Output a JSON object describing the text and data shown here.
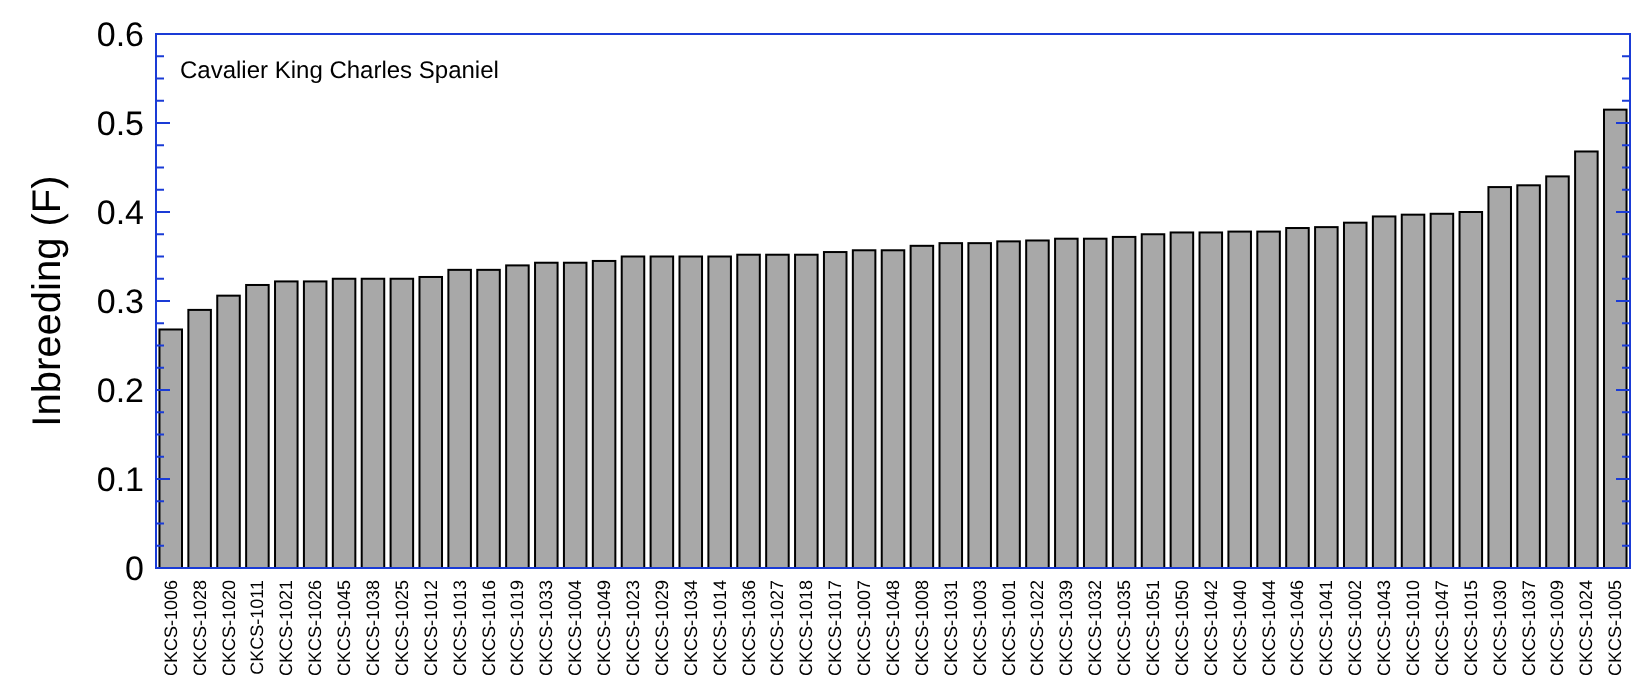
{
  "chart_data": {
    "type": "bar",
    "title": "Cavalier King Charles Spaniel",
    "ylabel": "Inbreeding (F)",
    "categories": [
      "CKCS-1006",
      "CKCS-1028",
      "CKCS-1020",
      "CKCS-1011",
      "CKCS-1021",
      "CKCS-1026",
      "CKCS-1045",
      "CKCS-1038",
      "CKCS-1025",
      "CKCS-1012",
      "CKCS-1013",
      "CKCS-1016",
      "CKCS-1019",
      "CKCS-1033",
      "CKCS-1004",
      "CKCS-1049",
      "CKCS-1023",
      "CKCS-1029",
      "CKCS-1034",
      "CKCS-1014",
      "CKCS-1036",
      "CKCS-1027",
      "CKCS-1018",
      "CKCS-1017",
      "CKCS-1007",
      "CKCS-1048",
      "CKCS-1008",
      "CKCS-1031",
      "CKCS-1003",
      "CKCS-1001",
      "CKCS-1022",
      "CKCS-1039",
      "CKCS-1032",
      "CKCS-1035",
      "CKCS-1051",
      "CKCS-1050",
      "CKCS-1042",
      "CKCS-1040",
      "CKCS-1044",
      "CKCS-1046",
      "CKCS-1041",
      "CKCS-1002",
      "CKCS-1043",
      "CKCS-1010",
      "CKCS-1047",
      "CKCS-1015",
      "CKCS-1030",
      "CKCS-1037",
      "CKCS-1009",
      "CKCS-1024",
      "CKCS-1005"
    ],
    "values": [
      0.268,
      0.29,
      0.306,
      0.318,
      0.322,
      0.322,
      0.325,
      0.325,
      0.325,
      0.327,
      0.335,
      0.335,
      0.34,
      0.343,
      0.343,
      0.345,
      0.35,
      0.35,
      0.35,
      0.35,
      0.352,
      0.352,
      0.352,
      0.355,
      0.357,
      0.357,
      0.362,
      0.365,
      0.365,
      0.367,
      0.368,
      0.37,
      0.37,
      0.372,
      0.375,
      0.377,
      0.377,
      0.378,
      0.378,
      0.382,
      0.383,
      0.388,
      0.395,
      0.397,
      0.398,
      0.4,
      0.428,
      0.43,
      0.44,
      0.468,
      0.515
    ],
    "color": "#a8a8a8",
    "ylim": [
      0,
      0.6
    ],
    "yticks": [
      0,
      0.1,
      0.2,
      0.3,
      0.4,
      0.5,
      0.6
    ],
    "grid": false
  }
}
